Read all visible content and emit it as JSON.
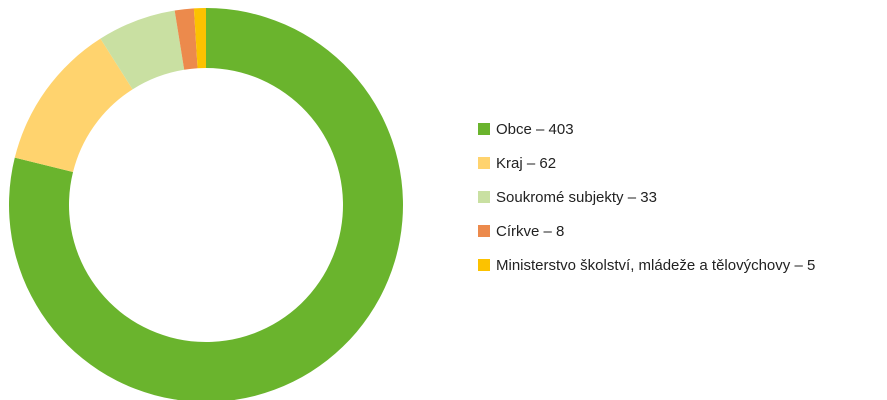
{
  "chart_data": {
    "type": "donut",
    "categories": [
      "Obce – 403",
      "Kraj – 62",
      "Soukromé subjekty – 33",
      "Církve – 8",
      "Ministerstvo školství, mládeže a tělovýchovy – 5"
    ],
    "values": [
      403,
      62,
      33,
      8,
      5
    ],
    "colors": [
      "#6ab42d",
      "#ffd36e",
      "#c9e0a2",
      "#ec8a4c",
      "#fcc200"
    ],
    "legend": "right"
  }
}
